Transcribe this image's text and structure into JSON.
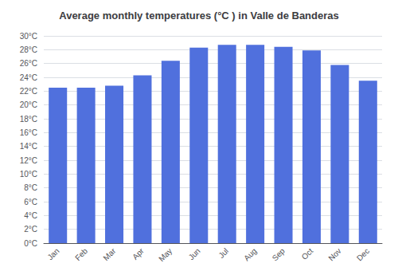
{
  "chart_data": {
    "type": "bar",
    "title": "Average monthly temperatures (°C ) in Valle de Banderas",
    "categories": [
      "Jan",
      "Feb",
      "Mar",
      "Apr",
      "May",
      "Jun",
      "Jul",
      "Aug",
      "Sep",
      "Oct",
      "Nov",
      "Dec"
    ],
    "values": [
      22.5,
      22.5,
      22.8,
      24.3,
      26.4,
      28.3,
      28.7,
      28.7,
      28.4,
      27.9,
      25.8,
      23.5
    ],
    "ylim": [
      0,
      30
    ],
    "yticks": [
      {
        "value": 0,
        "label": "0°C"
      },
      {
        "value": 2,
        "label": "2°C"
      },
      {
        "value": 4,
        "label": "4°C"
      },
      {
        "value": 6,
        "label": "6°C"
      },
      {
        "value": 8,
        "label": "8°C"
      },
      {
        "value": 10,
        "label": "10°C"
      },
      {
        "value": 12,
        "label": "12°C"
      },
      {
        "value": 14,
        "label": "14°C"
      },
      {
        "value": 16,
        "label": "16°C"
      },
      {
        "value": 18,
        "label": "18°C"
      },
      {
        "value": 20,
        "label": "20°C"
      },
      {
        "value": 22,
        "label": "22°C"
      },
      {
        "value": 24,
        "label": "24°C"
      },
      {
        "value": 26,
        "label": "26°C"
      },
      {
        "value": 28,
        "label": "28°C"
      },
      {
        "value": 30,
        "label": "30°C"
      }
    ],
    "grid": true
  }
}
